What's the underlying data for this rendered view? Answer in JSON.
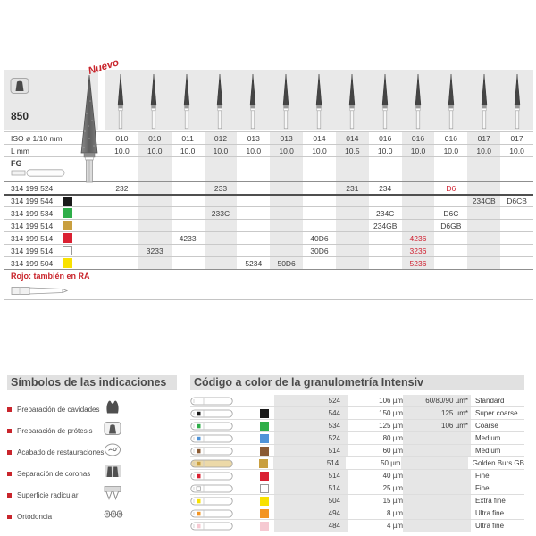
{
  "product": {
    "number": "850",
    "new_badge": "Nuevo",
    "note_red": "Rojo: también en RA"
  },
  "top_table": {
    "iso_label": "ISO ø 1/10 mm",
    "l_label": "L mm",
    "shank_label": "FG",
    "iso_values": [
      "010",
      "010",
      "011",
      "012",
      "013",
      "013",
      "014",
      "014",
      "016",
      "016",
      "016",
      "017",
      "017"
    ],
    "l_values": [
      "10.0",
      "10.0",
      "10.0",
      "10.0",
      "10.0",
      "10.0",
      "10.0",
      "10.5",
      "10.0",
      "10.0",
      "10.0",
      "10.0",
      "10.0"
    ],
    "code_rows": [
      {
        "code": "314 199 524",
        "swatch": null,
        "cells": [
          "232",
          "",
          "",
          "233",
          "",
          "",
          "",
          "231",
          "234",
          "",
          "D6",
          "",
          ""
        ],
        "red_cells": [
          10
        ]
      },
      {
        "code": "314 199 544",
        "swatch": "black",
        "cells": [
          "",
          "",
          "",
          "",
          "",
          "",
          "",
          "",
          "",
          "",
          "",
          "234CB",
          "D6CB"
        ],
        "red_cells": []
      },
      {
        "code": "314 199 534",
        "swatch": "green",
        "cells": [
          "",
          "",
          "",
          "233C",
          "",
          "",
          "",
          "",
          "234C",
          "",
          "D6C",
          "",
          ""
        ],
        "red_cells": []
      },
      {
        "code": "314 199 514",
        "swatch": "gold",
        "cells": [
          "",
          "",
          "",
          "",
          "",
          "",
          "",
          "",
          "234GB",
          "",
          "D6GB",
          "",
          ""
        ],
        "red_cells": []
      },
      {
        "code": "314 199 514",
        "swatch": "red",
        "cells": [
          "",
          "",
          "4233",
          "",
          "",
          "",
          "40D6",
          "",
          "",
          "4236",
          "",
          "",
          ""
        ],
        "red_cells": [
          9
        ]
      },
      {
        "code": "314 199 514",
        "swatch": "white",
        "cells": [
          "",
          "3233",
          "",
          "",
          "",
          "",
          "30D6",
          "",
          "",
          "3236",
          "",
          "",
          ""
        ],
        "red_cells": [
          9
        ]
      },
      {
        "code": "314 199 504",
        "swatch": "yellow",
        "cells": [
          "",
          "",
          "",
          "",
          "5234",
          "50D6",
          "",
          "",
          "",
          "5236",
          "",
          "",
          ""
        ],
        "red_cells": [
          9
        ]
      }
    ]
  },
  "symbols_panel": {
    "heading": "Símbolos de las indicaciones",
    "items": [
      {
        "label": "Preparación de cavidades",
        "icon": "cavity-prep-icon"
      },
      {
        "label": "Preparación de prótesis",
        "icon": "prosthesis-prep-icon"
      },
      {
        "label": "Acabado de restauraciones",
        "icon": "restoration-finishing-icon"
      },
      {
        "label": "Separación de coronas",
        "icon": "crown-separation-icon"
      },
      {
        "label": "Superficie radicular",
        "icon": "root-surface-icon"
      },
      {
        "label": "Ortodoncia",
        "icon": "orthodontics-icon"
      }
    ]
  },
  "granulometry_panel": {
    "heading": "Código a color de la granulometría Intensiv",
    "rows": [
      {
        "code": "524",
        "grain": "106 µm",
        "extra": "60/80/90 µm*",
        "name": "Standard",
        "color": null
      },
      {
        "code": "544",
        "grain": "150 µm",
        "extra": "125 µm*",
        "name": "Super coarse",
        "color": "black"
      },
      {
        "code": "534",
        "grain": "125 µm",
        "extra": "106 µm*",
        "name": "Coarse",
        "color": "green"
      },
      {
        "code": "524",
        "grain": "80 µm",
        "extra": "",
        "name": "Medium",
        "color": "blue"
      },
      {
        "code": "514",
        "grain": "60 µm",
        "extra": "",
        "name": "Medium",
        "color": "brown"
      },
      {
        "code": "514",
        "grain": "50 µm",
        "extra": "",
        "name": "Golden Burs GB",
        "color": "gold"
      },
      {
        "code": "514",
        "grain": "40 µm",
        "extra": "",
        "name": "Fine",
        "color": "red"
      },
      {
        "code": "514",
        "grain": "25 µm",
        "extra": "",
        "name": "Fine",
        "color": "white"
      },
      {
        "code": "504",
        "grain": "15 µm",
        "extra": "",
        "name": "Extra fine",
        "color": "yellow"
      },
      {
        "code": "494",
        "grain": "8 µm",
        "extra": "",
        "name": "Ultra fine",
        "color": "orange"
      },
      {
        "code": "484",
        "grain": "4 µm",
        "extra": "",
        "name": "Ultra fine",
        "color": "pink"
      }
    ]
  },
  "colors": {
    "accent_red": "#c9252c",
    "black": "#1a1a1a",
    "green": "#2fae49",
    "blue": "#4f93d8",
    "brown": "#8a5a33",
    "gold": "#c99f3f",
    "red": "#da2032",
    "white": "#ffffff",
    "yellow": "#f8e100",
    "orange": "#f39422",
    "pink": "#f6c9d2"
  }
}
